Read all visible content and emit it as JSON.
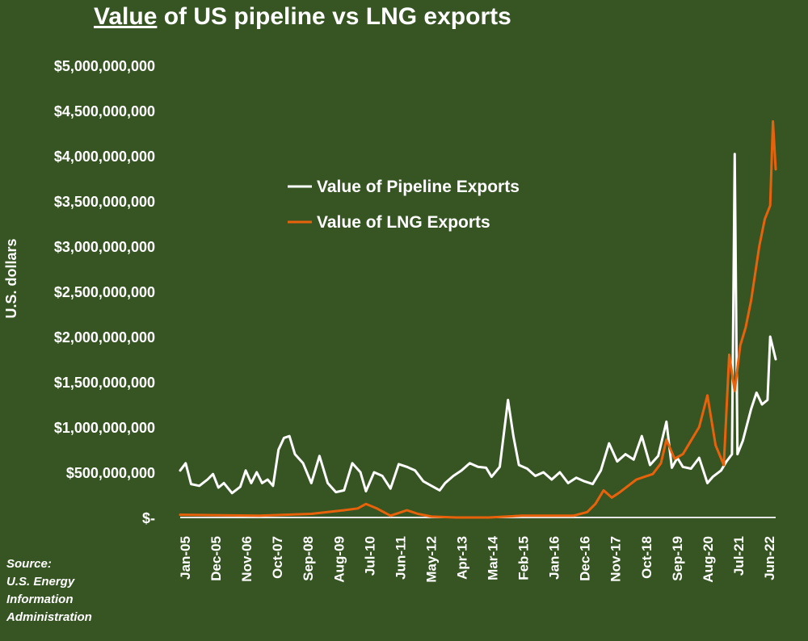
{
  "colors": {
    "background": "#365523",
    "pipeline": "#ffffff",
    "lng": "#e8620c",
    "axis": "#e6e6e6",
    "text": "#ffffff"
  },
  "title": {
    "underlined": "Value",
    "rest": " of US pipeline vs LNG exports"
  },
  "source": {
    "lines": [
      "Source:",
      "U.S. Energy",
      "Information",
      "Administration"
    ]
  },
  "chart_data": {
    "type": "line",
    "title": "Value of US pipeline vs LNG exports",
    "xlabel": "",
    "ylabel": "U.S. dollars",
    "ylim": [
      0,
      5000000000
    ],
    "yticks": [
      0,
      500000000,
      1000000000,
      1500000000,
      2000000000,
      2500000000,
      3000000000,
      3500000000,
      4000000000,
      4500000000,
      5000000000
    ],
    "ytick_labels": [
      "$-",
      "$500,000,000",
      "$1,000,000,000",
      "$1,500,000,000",
      "$2,000,000,000",
      "$2,500,000,000",
      "$3,000,000,000",
      "$3,500,000,000",
      "$4,000,000,000",
      "$4,500,000,000",
      "$5,000,000,000"
    ],
    "xrange": [
      "2005-01",
      "2022-06"
    ],
    "xtick_labels": [
      "Jan-05",
      "Dec-05",
      "Nov-06",
      "Oct-07",
      "Sep-08",
      "Aug-09",
      "Jul-10",
      "Jun-11",
      "May-12",
      "Apr-13",
      "Mar-14",
      "Feb-15",
      "Jan-16",
      "Dec-16",
      "Nov-17",
      "Oct-18",
      "Sep-19",
      "Aug-20",
      "Jul-21",
      "Jun-22"
    ],
    "grid": false,
    "legend_position": "top-center",
    "series": [
      {
        "name": "Value of Pipeline Exports",
        "color": "#ffffff",
        "points": [
          [
            "2005-01",
            520000000
          ],
          [
            "2005-03",
            600000000
          ],
          [
            "2005-05",
            370000000
          ],
          [
            "2005-08",
            350000000
          ],
          [
            "2005-11",
            420000000
          ],
          [
            "2006-01",
            480000000
          ],
          [
            "2006-03",
            330000000
          ],
          [
            "2006-05",
            380000000
          ],
          [
            "2006-08",
            270000000
          ],
          [
            "2006-11",
            340000000
          ],
          [
            "2007-01",
            520000000
          ],
          [
            "2007-03",
            380000000
          ],
          [
            "2007-05",
            500000000
          ],
          [
            "2007-07",
            380000000
          ],
          [
            "2007-09",
            420000000
          ],
          [
            "2007-11",
            350000000
          ],
          [
            "2008-01",
            750000000
          ],
          [
            "2008-03",
            880000000
          ],
          [
            "2008-05",
            900000000
          ],
          [
            "2008-07",
            700000000
          ],
          [
            "2008-10",
            600000000
          ],
          [
            "2009-01",
            380000000
          ],
          [
            "2009-04",
            680000000
          ],
          [
            "2009-07",
            380000000
          ],
          [
            "2009-10",
            280000000
          ],
          [
            "2010-01",
            300000000
          ],
          [
            "2010-04",
            600000000
          ],
          [
            "2010-07",
            500000000
          ],
          [
            "2010-09",
            290000000
          ],
          [
            "2010-12",
            500000000
          ],
          [
            "2011-03",
            460000000
          ],
          [
            "2011-06",
            320000000
          ],
          [
            "2011-09",
            590000000
          ],
          [
            "2011-12",
            560000000
          ],
          [
            "2012-03",
            520000000
          ],
          [
            "2012-06",
            400000000
          ],
          [
            "2012-09",
            350000000
          ],
          [
            "2012-12",
            300000000
          ],
          [
            "2013-02",
            380000000
          ],
          [
            "2013-05",
            460000000
          ],
          [
            "2013-08",
            520000000
          ],
          [
            "2013-11",
            600000000
          ],
          [
            "2014-02",
            560000000
          ],
          [
            "2014-05",
            550000000
          ],
          [
            "2014-07",
            450000000
          ],
          [
            "2014-10",
            560000000
          ],
          [
            "2015-01",
            1300000000
          ],
          [
            "2015-03",
            900000000
          ],
          [
            "2015-05",
            580000000
          ],
          [
            "2015-08",
            540000000
          ],
          [
            "2015-11",
            460000000
          ],
          [
            "2016-02",
            500000000
          ],
          [
            "2016-05",
            420000000
          ],
          [
            "2016-08",
            500000000
          ],
          [
            "2016-11",
            380000000
          ],
          [
            "2017-02",
            440000000
          ],
          [
            "2017-05",
            400000000
          ],
          [
            "2017-08",
            370000000
          ],
          [
            "2017-11",
            520000000
          ],
          [
            "2018-02",
            820000000
          ],
          [
            "2018-05",
            620000000
          ],
          [
            "2018-08",
            700000000
          ],
          [
            "2018-11",
            640000000
          ],
          [
            "2019-02",
            900000000
          ],
          [
            "2019-05",
            580000000
          ],
          [
            "2019-08",
            680000000
          ],
          [
            "2019-11",
            1060000000
          ],
          [
            "2020-01",
            550000000
          ],
          [
            "2020-03",
            660000000
          ],
          [
            "2020-05",
            560000000
          ],
          [
            "2020-08",
            540000000
          ],
          [
            "2020-11",
            660000000
          ],
          [
            "2021-02",
            380000000
          ],
          [
            "2021-04",
            450000000
          ],
          [
            "2021-07",
            520000000
          ],
          [
            "2021-09",
            620000000
          ],
          [
            "2021-11",
            700000000
          ],
          [
            "2021-12",
            4020000000
          ],
          [
            "2022-01",
            700000000
          ],
          [
            "2022-03",
            850000000
          ],
          [
            "2022-06",
            1200000000
          ],
          [
            "2022-08",
            1380000000
          ],
          [
            "2022-10",
            1250000000
          ],
          [
            "2022-12",
            1300000000
          ],
          [
            "2023-01",
            2000000000
          ],
          [
            "2023-03",
            1750000000
          ]
        ]
      },
      {
        "name": "Value of LNG Exports",
        "color": "#e8620c",
        "points": [
          [
            "2005-01",
            30000000
          ],
          [
            "2007-06",
            20000000
          ],
          [
            "2009-01",
            40000000
          ],
          [
            "2010-01",
            80000000
          ],
          [
            "2010-06",
            100000000
          ],
          [
            "2010-09",
            150000000
          ],
          [
            "2011-01",
            100000000
          ],
          [
            "2011-06",
            20000000
          ],
          [
            "2011-12",
            80000000
          ],
          [
            "2012-04",
            40000000
          ],
          [
            "2012-09",
            10000000
          ],
          [
            "2013-06",
            0
          ],
          [
            "2014-06",
            0
          ],
          [
            "2015-06",
            20000000
          ],
          [
            "2016-06",
            20000000
          ],
          [
            "2017-01",
            20000000
          ],
          [
            "2017-06",
            60000000
          ],
          [
            "2017-09",
            150000000
          ],
          [
            "2017-12",
            300000000
          ],
          [
            "2018-03",
            220000000
          ],
          [
            "2018-06",
            280000000
          ],
          [
            "2018-09",
            350000000
          ],
          [
            "2018-12",
            420000000
          ],
          [
            "2019-03",
            450000000
          ],
          [
            "2019-06",
            480000000
          ],
          [
            "2019-09",
            600000000
          ],
          [
            "2019-11",
            860000000
          ],
          [
            "2020-02",
            650000000
          ],
          [
            "2020-05",
            700000000
          ],
          [
            "2020-08",
            850000000
          ],
          [
            "2020-11",
            1000000000
          ],
          [
            "2021-02",
            1350000000
          ],
          [
            "2021-05",
            800000000
          ],
          [
            "2021-08",
            580000000
          ],
          [
            "2021-10",
            1800000000
          ],
          [
            "2021-12",
            1400000000
          ],
          [
            "2022-02",
            1900000000
          ],
          [
            "2022-04",
            2100000000
          ],
          [
            "2022-06",
            2400000000
          ],
          [
            "2022-09",
            3000000000
          ],
          [
            "2022-11",
            3300000000
          ],
          [
            "2023-01",
            3450000000
          ],
          [
            "2023-02",
            4380000000
          ],
          [
            "2023-03",
            3850000000
          ]
        ]
      }
    ]
  }
}
